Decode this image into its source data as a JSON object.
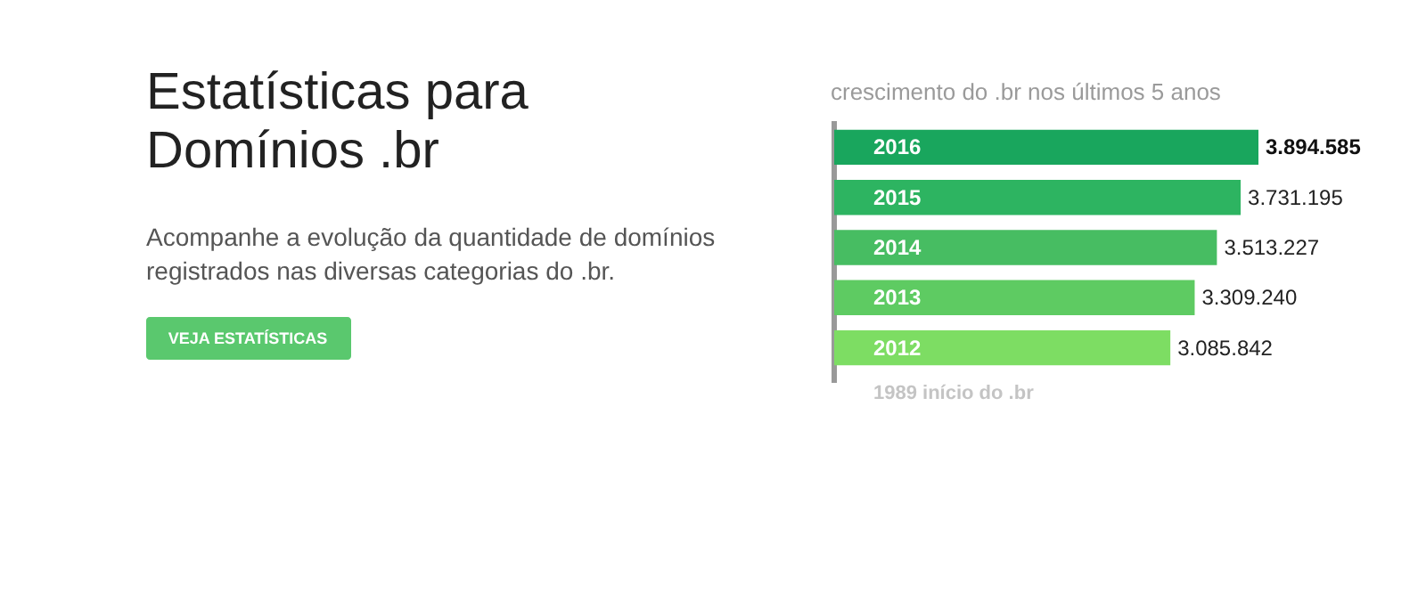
{
  "chart_data": {
    "type": "bar",
    "orientation": "horizontal",
    "title": "crescimento do .br nos últimos 5 anos",
    "categories": [
      "2016",
      "2015",
      "2014",
      "2013",
      "2012"
    ],
    "values": [
      3894585,
      3731195,
      3513227,
      3309240,
      3085842
    ],
    "colors": [
      "#19a65d",
      "#2db461",
      "#47bd62",
      "#5ecb62",
      "#7ddd63"
    ],
    "value_labels": [
      "3.894.585",
      "3.731.195",
      "3.513.227",
      "3.309.240",
      "3.085.842"
    ],
    "annotations": [
      "Estatísticas para\nDomínios .br",
      "Acompanhe a evolução da quantidade de domínios\nregistrados nas diversas categorias do .br.",
      "VEJA ESTATÍSTICAS",
      "1989 início do .br"
    ]
  }
}
